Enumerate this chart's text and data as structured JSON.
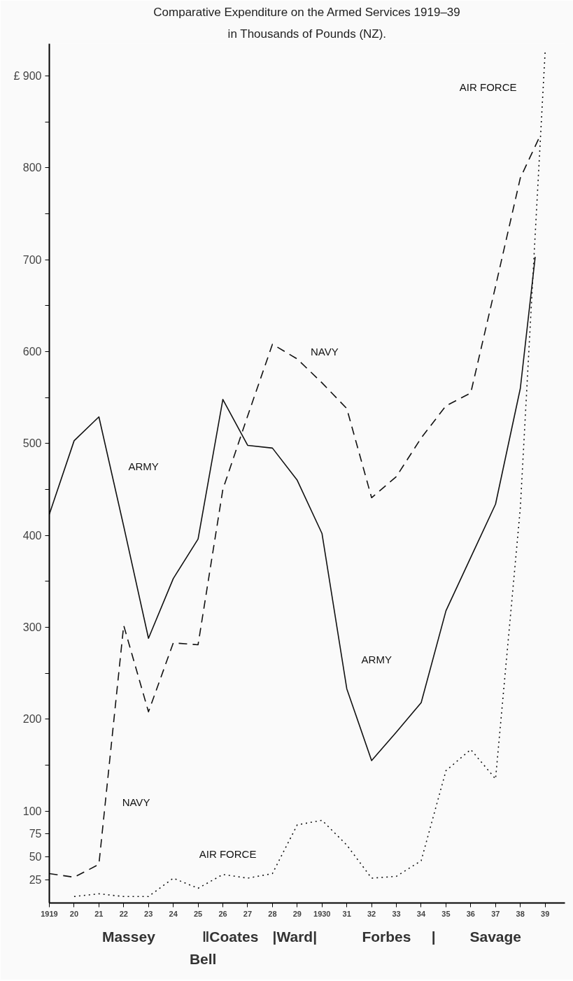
{
  "chart_data": {
    "type": "line",
    "title": "Comparative Expenditure on the Armed Services 1919–39",
    "subtitle": "in Thousands of Pounds (NZ).",
    "xlim": [
      1919,
      1939.8
    ],
    "ylim": [
      0,
      935
    ],
    "xticks": [
      {
        "value": 1919,
        "label": "1919"
      },
      {
        "value": 1920,
        "label": "20"
      },
      {
        "value": 1921,
        "label": "21"
      },
      {
        "value": 1922,
        "label": "22"
      },
      {
        "value": 1923,
        "label": "23"
      },
      {
        "value": 1924,
        "label": "24"
      },
      {
        "value": 1925,
        "label": "25"
      },
      {
        "value": 1926,
        "label": "26"
      },
      {
        "value": 1927,
        "label": "27"
      },
      {
        "value": 1928,
        "label": "28"
      },
      {
        "value": 1929,
        "label": "29"
      },
      {
        "value": 1930,
        "label": "1930"
      },
      {
        "value": 1931,
        "label": "31"
      },
      {
        "value": 1932,
        "label": "32"
      },
      {
        "value": 1933,
        "label": "33"
      },
      {
        "value": 1934,
        "label": "34"
      },
      {
        "value": 1935,
        "label": "35"
      },
      {
        "value": 1936,
        "label": "36"
      },
      {
        "value": 1937,
        "label": "37"
      },
      {
        "value": 1938,
        "label": "38"
      },
      {
        "value": 1939,
        "label": "39"
      }
    ],
    "yticks": [
      25,
      50,
      75,
      100,
      {
        "value": 150,
        "label": null
      },
      200,
      {
        "value": 250,
        "label": null
      },
      300,
      {
        "value": 350,
        "label": null
      },
      400,
      {
        "value": 450,
        "label": null
      },
      500,
      {
        "value": 550,
        "label": null
      },
      600,
      {
        "value": 650,
        "label": null
      },
      700,
      {
        "value": 750,
        "label": null
      },
      800,
      {
        "value": 850,
        "label": null
      },
      {
        "value": 900,
        "label": "£ 900"
      }
    ],
    "grid": false,
    "series": [
      {
        "color": "#111111",
        "line_style": "solid",
        "x": [
          1919,
          1920,
          1921,
          1922,
          1923,
          1924,
          1925,
          1926,
          1927,
          1928,
          1929,
          1930,
          1931,
          1932,
          1933,
          1934,
          1935,
          1936,
          1937,
          1938,
          1938.6
        ],
        "values": [
          423,
          503,
          529,
          410,
          288,
          353,
          396,
          548,
          498,
          495,
          460,
          402,
          233,
          155,
          186,
          218,
          318,
          376,
          434,
          560,
          703
        ]
      },
      {
        "color": "#111111",
        "line_style": "dashed",
        "x": [
          1919,
          1920,
          1921,
          1922,
          1923,
          1924,
          1925,
          1926,
          1927,
          1928,
          1929,
          1930,
          1931,
          1932,
          1933,
          1934,
          1935,
          1936,
          1937,
          1938,
          1938.8
        ],
        "values": [
          32,
          28,
          42,
          302,
          208,
          283,
          281,
          450,
          530,
          608,
          592,
          566,
          538,
          441,
          464,
          506,
          541,
          555,
          671,
          789,
          835
        ]
      },
      {
        "color": "#111111",
        "line_style": "dotted",
        "x": [
          1920,
          1921,
          1922,
          1923,
          1924,
          1925,
          1926,
          1927,
          1928,
          1929,
          1930,
          1931,
          1932,
          1933,
          1934,
          1935,
          1936,
          1937,
          1938,
          1939
        ],
        "values": [
          7,
          10,
          7,
          7,
          27,
          16,
          31,
          27,
          32,
          85,
          90,
          63,
          27,
          29,
          46,
          144,
          167,
          135,
          430,
          926
        ]
      }
    ],
    "annotations": [
      "ARMY",
      "NAVY",
      "AIR FORCE",
      "ARMY",
      "NAVY",
      "AIR FORCE",
      "Massey",
      "‖Coates",
      "|Ward|",
      "Forbes",
      "|",
      "Savage",
      "Bell"
    ]
  }
}
